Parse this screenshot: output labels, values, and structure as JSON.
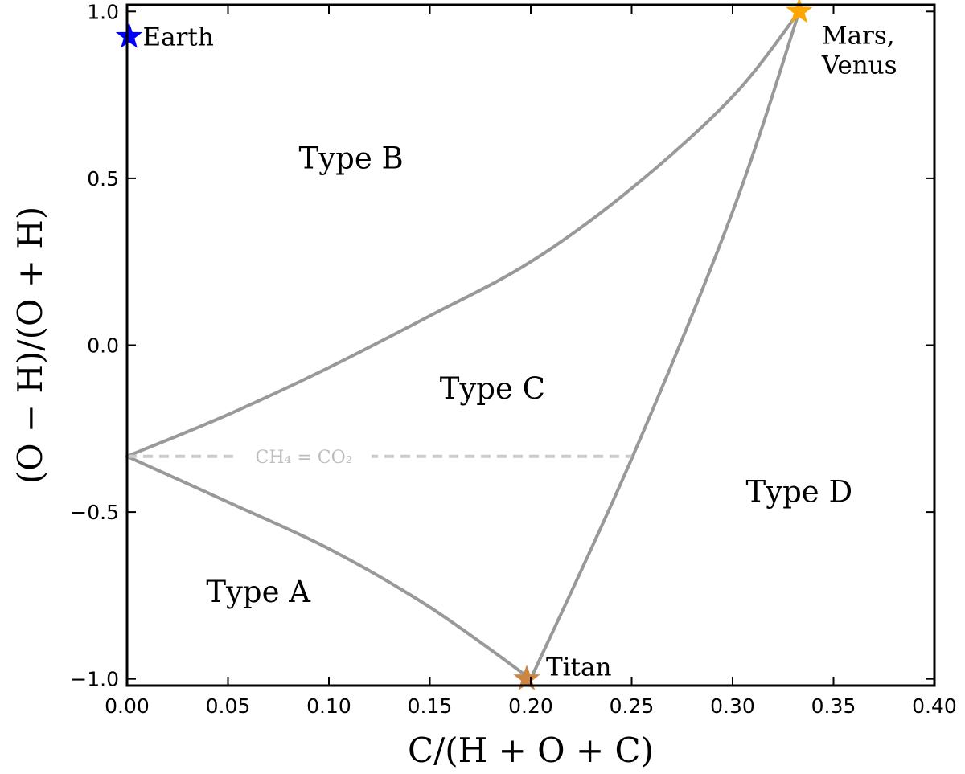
{
  "chart_data": {
    "type": "line",
    "title": "",
    "xlabel": "C/(H + O + C)",
    "ylabel": "(O − H)/(O + H)",
    "xlim": [
      0.0,
      0.4
    ],
    "ylim": [
      -1.02,
      1.02
    ],
    "x_ticks": [
      0.0,
      0.05,
      0.1,
      0.15,
      0.2,
      0.25,
      0.3,
      0.35,
      0.4
    ],
    "x_tick_labels": [
      "0.00",
      "0.05",
      "0.10",
      "0.15",
      "0.20",
      "0.25",
      "0.30",
      "0.35",
      "0.40"
    ],
    "y_ticks": [
      -1.0,
      -0.5,
      0.0,
      0.5,
      1.0
    ],
    "y_tick_labels": [
      "−1.0",
      "−0.5",
      "0.0",
      "0.5",
      "1.0"
    ],
    "grid": false,
    "boundaries": [
      {
        "color": "#999999",
        "points": [
          [
            0.0,
            -0.333
          ],
          [
            0.05,
            -0.208
          ],
          [
            0.1,
            -0.067
          ],
          [
            0.15,
            0.088
          ],
          [
            0.2,
            0.25
          ],
          [
            0.25,
            0.47
          ],
          [
            0.3,
            0.745
          ],
          [
            0.333,
            1.0
          ]
        ]
      },
      {
        "color": "#999999",
        "points": [
          [
            0.0,
            -0.333
          ],
          [
            0.05,
            -0.47
          ],
          [
            0.1,
            -0.61
          ],
          [
            0.15,
            -0.785
          ],
          [
            0.2,
            -1.0
          ]
        ]
      },
      {
        "color": "#999999",
        "points": [
          [
            0.2,
            -1.0
          ],
          [
            0.25,
            -0.34
          ],
          [
            0.3,
            0.4
          ],
          [
            0.333,
            1.0
          ]
        ]
      }
    ],
    "reference_line": {
      "label": "CH₄ = CO₂",
      "color": "#cccccc",
      "x_start": 0.0,
      "x_end": 0.25,
      "y": -0.333
    },
    "points": [
      {
        "label": "Earth",
        "x": 0.001,
        "y": 0.925,
        "color": "#0000ff"
      },
      {
        "label": "Titan",
        "x": 0.198,
        "y": -1.0,
        "color": "#cd853f"
      },
      {
        "label": "Mars,",
        "label2": "Venus",
        "x": 0.333,
        "y": 1.0,
        "color": "#ffa500"
      }
    ],
    "region_labels": [
      {
        "text": "Type A",
        "x": 0.065,
        "y": -0.77
      },
      {
        "text": "Type B",
        "x": 0.111,
        "y": 0.53
      },
      {
        "text": "Type C",
        "x": 0.181,
        "y": -0.16
      },
      {
        "text": "Type D",
        "x": 0.333,
        "y": -0.47
      }
    ]
  }
}
